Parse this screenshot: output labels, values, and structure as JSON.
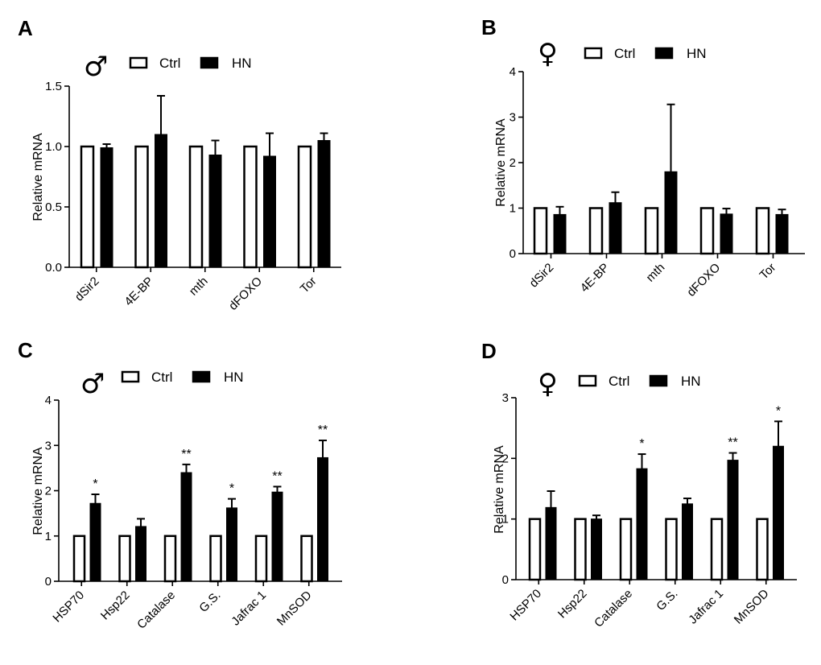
{
  "colors": {
    "ctrl_fill": "#ffffff",
    "hn_fill": "#000000",
    "stroke": "#000000"
  },
  "legend": {
    "ctrl": "Ctrl",
    "hn": "HN"
  },
  "chart_data": [
    {
      "panel": "A",
      "sex_symbol": "♂",
      "type": "bar",
      "ylabel": "Relative mRNA",
      "ylim": [
        0,
        1.5
      ],
      "yticks": [
        0,
        0.5,
        1.0,
        1.5
      ],
      "ytick_labels": [
        "0.0",
        "0.5",
        "1.0",
        "1.5"
      ],
      "categories": [
        "dSir2",
        "4E-BP",
        "mth",
        "dFOXO",
        "Tor"
      ],
      "series": [
        {
          "name": "Ctrl",
          "values": [
            1.0,
            1.0,
            1.0,
            1.0,
            1.0
          ],
          "errors": [
            0,
            0,
            0,
            0,
            0
          ]
        },
        {
          "name": "HN",
          "values": [
            0.99,
            1.1,
            0.93,
            0.92,
            1.05
          ],
          "errors": [
            0.03,
            0.32,
            0.12,
            0.19,
            0.06
          ]
        }
      ],
      "significance": [
        "",
        "",
        "",
        "",
        ""
      ]
    },
    {
      "panel": "B",
      "sex_symbol": "♀",
      "type": "bar",
      "ylabel": "Relative mRNA",
      "ylim": [
        0,
        4
      ],
      "yticks": [
        0,
        1,
        2,
        3,
        4
      ],
      "ytick_labels": [
        "0",
        "1",
        "2",
        "3",
        "4"
      ],
      "categories": [
        "dSir2",
        "4E-BP",
        "mth",
        "dFOXO",
        "Tor"
      ],
      "series": [
        {
          "name": "Ctrl",
          "values": [
            1.0,
            1.0,
            1.0,
            1.0,
            1.0
          ],
          "errors": [
            0,
            0,
            0,
            0,
            0
          ]
        },
        {
          "name": "HN",
          "values": [
            0.86,
            1.12,
            1.8,
            0.87,
            0.86
          ],
          "errors": [
            0.17,
            0.23,
            1.48,
            0.12,
            0.11
          ]
        }
      ],
      "significance": [
        "",
        "",
        "",
        "",
        ""
      ]
    },
    {
      "panel": "C",
      "sex_symbol": "♂",
      "type": "bar",
      "ylabel": "Relative mRNA",
      "ylim": [
        0,
        4
      ],
      "yticks": [
        0,
        1,
        2,
        3,
        4
      ],
      "ytick_labels": [
        "0",
        "1",
        "2",
        "3",
        "4"
      ],
      "categories": [
        "HSP70",
        "Hsp22",
        "Catalase",
        "G.S.",
        "Jafrac 1",
        "MnSOD"
      ],
      "series": [
        {
          "name": "Ctrl",
          "values": [
            1.0,
            1.0,
            1.0,
            1.0,
            1.0,
            1.0
          ],
          "errors": [
            0,
            0,
            0,
            0,
            0,
            0
          ]
        },
        {
          "name": "HN",
          "values": [
            1.72,
            1.21,
            2.4,
            1.62,
            1.97,
            2.73
          ],
          "errors": [
            0.2,
            0.17,
            0.18,
            0.2,
            0.12,
            0.38
          ]
        }
      ],
      "significance": [
        "*",
        "",
        "**",
        "*",
        "**",
        "**"
      ]
    },
    {
      "panel": "D",
      "sex_symbol": "♀",
      "type": "bar",
      "ylabel": "Relative mRNA",
      "ylim": [
        0,
        3
      ],
      "yticks": [
        0,
        1,
        2,
        3
      ],
      "ytick_labels": [
        "0",
        "1",
        "2",
        "3"
      ],
      "categories": [
        "HSP70",
        "Hsp22",
        "Catalase",
        "G.S.",
        "Jafrac 1",
        "MnSOD"
      ],
      "series": [
        {
          "name": "Ctrl",
          "values": [
            1.0,
            1.0,
            1.0,
            1.0,
            1.0,
            1.0
          ],
          "errors": [
            0,
            0,
            0,
            0,
            0,
            0
          ]
        },
        {
          "name": "HN",
          "values": [
            1.19,
            1.0,
            1.83,
            1.25,
            1.97,
            2.2
          ],
          "errors": [
            0.27,
            0.06,
            0.24,
            0.09,
            0.12,
            0.41
          ]
        }
      ],
      "significance": [
        "",
        "",
        "*",
        "",
        "**",
        "*"
      ]
    }
  ]
}
